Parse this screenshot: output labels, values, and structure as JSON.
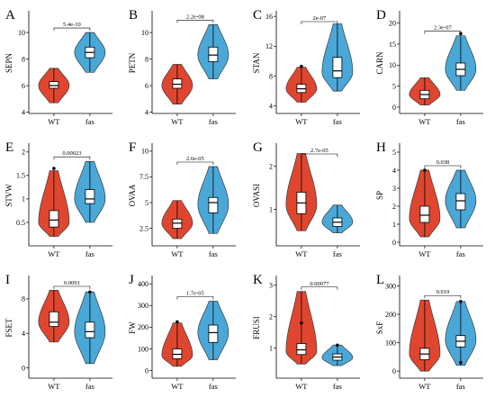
{
  "colors": {
    "wt": "#e0462f",
    "fas": "#4aa8d8",
    "outline": "#3a3a3a",
    "box": "#ffffff",
    "point": "#000000"
  },
  "chart_data": [
    {
      "type": "violin",
      "panel": "A",
      "ylabel": "SEPN",
      "categories": [
        "WT",
        "fas"
      ],
      "yticks": [
        4,
        6,
        8,
        10
      ],
      "ylim": [
        3.9,
        11.5
      ],
      "pvalue": "5.4e-10",
      "series": [
        {
          "name": "WT",
          "min": 4.7,
          "q1": 5.8,
          "median": 6.0,
          "q3": 6.3,
          "max": 7.3,
          "mode": 6.0,
          "outliers": []
        },
        {
          "name": "fas",
          "min": 7.0,
          "q1": 8.1,
          "median": 8.5,
          "q3": 8.9,
          "max": 10.0,
          "mode": 8.5,
          "outliers": []
        }
      ]
    },
    {
      "type": "violin",
      "panel": "B",
      "ylabel": "PETN",
      "categories": [
        "WT",
        "fas"
      ],
      "yticks": [
        4,
        6,
        8,
        10
      ],
      "ylim": [
        3.9,
        11.5
      ],
      "pvalue": "2.2e-08",
      "series": [
        {
          "name": "WT",
          "min": 4.6,
          "q1": 5.8,
          "median": 6.1,
          "q3": 6.5,
          "max": 7.6,
          "mode": 6.0,
          "outliers": []
        },
        {
          "name": "fas",
          "min": 6.5,
          "q1": 7.8,
          "median": 8.3,
          "q3": 8.9,
          "max": 10.6,
          "mode": 8.3,
          "outliers": []
        }
      ]
    },
    {
      "type": "violin",
      "panel": "C",
      "ylabel": "STAN",
      "categories": [
        "WT",
        "fas"
      ],
      "yticks": [
        4,
        8,
        12,
        16
      ],
      "ylim": [
        3.0,
        16.5
      ],
      "pvalue": "2e-07",
      "series": [
        {
          "name": "WT",
          "min": 4.5,
          "q1": 5.8,
          "median": 6.3,
          "q3": 6.9,
          "max": 9.2,
          "mode": 6.3,
          "outliers": [
            9.3
          ]
        },
        {
          "name": "fas",
          "min": 6.0,
          "q1": 7.8,
          "median": 8.7,
          "q3": 10.5,
          "max": 15.0,
          "mode": 8.5,
          "outliers": []
        }
      ]
    },
    {
      "type": "violin",
      "panel": "D",
      "ylabel": "CARN",
      "categories": [
        "WT",
        "fas"
      ],
      "yticks": [
        0,
        5,
        10,
        15,
        20
      ],
      "ylim": [
        -1.5,
        22.5
      ],
      "pvalue": "2.3e-07",
      "series": [
        {
          "name": "WT",
          "min": 0.5,
          "q1": 2.0,
          "median": 3.0,
          "q3": 4.0,
          "max": 7.0,
          "mode": 3.0,
          "outliers": []
        },
        {
          "name": "fas",
          "min": 4.0,
          "q1": 7.5,
          "median": 9.0,
          "q3": 10.5,
          "max": 17.0,
          "mode": 9.0,
          "outliers": [
            17.5
          ]
        }
      ]
    },
    {
      "type": "violin",
      "panel": "E",
      "ylabel": "STVW",
      "categories": [
        "WT",
        "fas"
      ],
      "yticks": [
        0.5,
        1.0,
        1.5,
        2.0
      ],
      "ylim": [
        0.0,
        2.15
      ],
      "pvalue": "0.00023",
      "series": [
        {
          "name": "WT",
          "min": 0.2,
          "q1": 0.4,
          "median": 0.55,
          "q3": 0.75,
          "max": 1.6,
          "mode": 0.5,
          "outliers": [
            1.65
          ]
        },
        {
          "name": "fas",
          "min": 0.5,
          "q1": 0.9,
          "median": 1.0,
          "q3": 1.2,
          "max": 1.8,
          "mode": 1.0,
          "outliers": []
        }
      ]
    },
    {
      "type": "violin",
      "panel": "F",
      "ylabel": "OVAA",
      "categories": [
        "WT",
        "fas"
      ],
      "yticks": [
        2.5,
        5.0,
        7.5,
        10.0
      ],
      "ylim": [
        0.8,
        10.6
      ],
      "pvalue": "2.6e-05",
      "series": [
        {
          "name": "WT",
          "min": 1.5,
          "q1": 2.5,
          "median": 3.0,
          "q3": 3.4,
          "max": 5.2,
          "mode": 3.0,
          "outliers": []
        },
        {
          "name": "fas",
          "min": 2.0,
          "q1": 4.0,
          "median": 5.0,
          "q3": 5.5,
          "max": 8.5,
          "mode": 4.8,
          "outliers": []
        }
      ]
    },
    {
      "type": "violin",
      "panel": "G",
      "ylabel": "OVASI",
      "categories": [
        "WT",
        "fas"
      ],
      "yticks": [
        1,
        2
      ],
      "ylim": [
        0.15,
        2.5
      ],
      "pvalue": "2.7e-05",
      "series": [
        {
          "name": "WT",
          "min": 0.5,
          "q1": 0.9,
          "median": 1.15,
          "q3": 1.4,
          "max": 2.3,
          "mode": 1.1,
          "outliers": []
        },
        {
          "name": "fas",
          "min": 0.45,
          "q1": 0.6,
          "median": 0.7,
          "q3": 0.8,
          "max": 1.1,
          "mode": 0.7,
          "outliers": []
        }
      ]
    },
    {
      "type": "violin",
      "panel": "H",
      "ylabel": "SP",
      "categories": [
        "WT",
        "fas"
      ],
      "yticks": [
        0,
        1,
        2,
        3,
        4,
        5
      ],
      "ylim": [
        -0.2,
        5.4
      ],
      "pvalue": "0.038",
      "series": [
        {
          "name": "WT",
          "min": 0.3,
          "q1": 1.1,
          "median": 1.5,
          "q3": 2.0,
          "max": 4.0,
          "mode": 1.3,
          "outliers": [
            4.0
          ]
        },
        {
          "name": "fas",
          "min": 0.8,
          "q1": 1.8,
          "median": 2.3,
          "q3": 2.7,
          "max": 4.0,
          "mode": 2.3,
          "outliers": []
        }
      ]
    },
    {
      "type": "violin",
      "panel": "I",
      "ylabel": "FSET",
      "categories": [
        "WT",
        "fas"
      ],
      "yticks": [
        0,
        4,
        8
      ],
      "ylim": [
        -1.2,
        10.5
      ],
      "pvalue": "0.0091",
      "series": [
        {
          "name": "WT",
          "min": 3.0,
          "q1": 4.8,
          "median": 5.3,
          "q3": 6.5,
          "max": 9.0,
          "mode": 5.3,
          "outliers": []
        },
        {
          "name": "fas",
          "min": 0.5,
          "q1": 3.5,
          "median": 4.2,
          "q3": 5.3,
          "max": 8.8,
          "mode": 4.2,
          "outliers": [
            8.8
          ]
        }
      ]
    },
    {
      "type": "violin",
      "panel": "J",
      "ylabel": "FW",
      "categories": [
        "WT",
        "fas"
      ],
      "yticks": [
        0,
        100,
        200,
        300,
        400
      ],
      "ylim": [
        -35,
        430
      ],
      "pvalue": "1.7e-05",
      "series": [
        {
          "name": "WT",
          "min": 20,
          "q1": 55,
          "median": 75,
          "q3": 100,
          "max": 220,
          "mode": 70,
          "outliers": [
            225
          ]
        },
        {
          "name": "fas",
          "min": 50,
          "q1": 130,
          "median": 175,
          "q3": 210,
          "max": 320,
          "mode": 175,
          "outliers": []
        }
      ]
    },
    {
      "type": "violin",
      "panel": "K",
      "ylabel": "FRUSI",
      "categories": [
        "WT",
        "fas"
      ],
      "yticks": [
        1,
        2,
        3
      ],
      "ylim": [
        0.05,
        3.25
      ],
      "pvalue": "0.00077",
      "series": [
        {
          "name": "WT",
          "min": 0.5,
          "q1": 0.8,
          "median": 0.95,
          "q3": 1.15,
          "max": 2.8,
          "mode": 0.9,
          "outliers": [
            1.8
          ]
        },
        {
          "name": "fas",
          "min": 0.45,
          "q1": 0.62,
          "median": 0.72,
          "q3": 0.82,
          "max": 1.1,
          "mode": 0.7,
          "outliers": [
            1.1
          ]
        }
      ]
    },
    {
      "type": "violin",
      "panel": "L",
      "ylabel": "SxF",
      "categories": [
        "WT",
        "fas"
      ],
      "yticks": [
        0,
        100,
        200,
        300
      ],
      "ylim": [
        -25,
        330
      ],
      "pvalue": "0.019",
      "series": [
        {
          "name": "WT",
          "min": 0,
          "q1": 40,
          "median": 60,
          "q3": 80,
          "max": 250,
          "mode": 60,
          "outliers": []
        },
        {
          "name": "fas",
          "min": 20,
          "q1": 85,
          "median": 105,
          "q3": 125,
          "max": 245,
          "mode": 110,
          "outliers": [
            30,
            245
          ]
        }
      ]
    }
  ]
}
